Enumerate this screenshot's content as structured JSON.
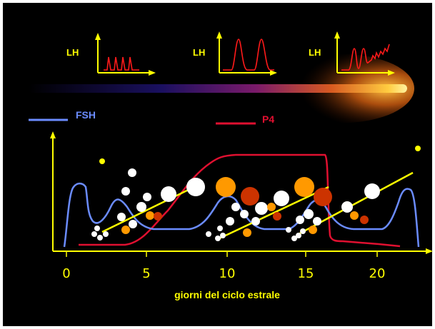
{
  "inset_label": "LH",
  "legend": {
    "fsh": "FSH",
    "p4": "P4"
  },
  "xlabel": "giorni del ciclo estrale",
  "xticks": [
    "0",
    "5",
    "10",
    "15",
    "20"
  ],
  "colors": {
    "background": "#000000",
    "axis": "#ffff00",
    "lh": "#ff1a1a",
    "fsh": "#6b8cff",
    "p4": "#e01030",
    "follicle_small": "#ffffff",
    "follicle_growing": "#ff9900",
    "follicle_atretic": "#cc3300",
    "wave_line": "#ffff00"
  }
}
